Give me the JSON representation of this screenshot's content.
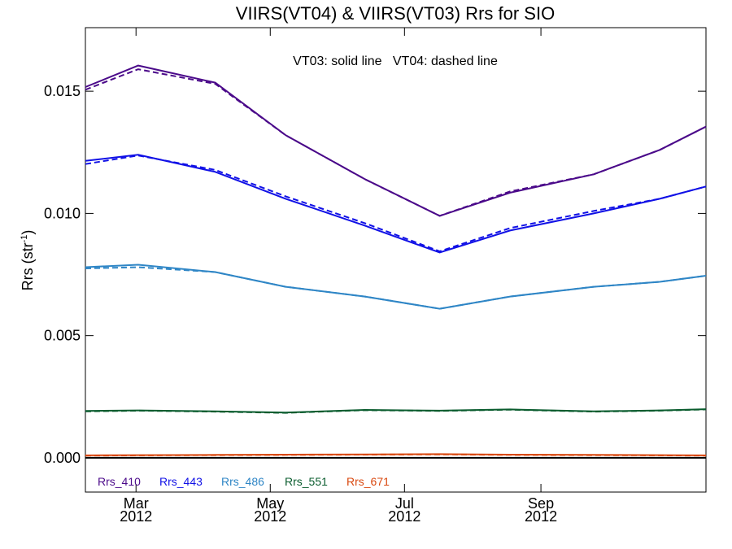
{
  "chart_data": {
    "type": "line",
    "title": "VIIRS(VT04) & VIIRS(VT03)  Rrs for SIO",
    "annotation": "VT03: solid line   VT04: dashed line",
    "ylabel_main": "Rrs (str",
    "ylabel_sup": "-1",
    "ylabel_close": ")",
    "xlim": [
      "2012-02-07",
      "2012-11-15"
    ],
    "ylim": [
      -0.0014,
      0.0176
    ],
    "yticks": [
      0.0,
      0.005,
      0.01,
      0.015
    ],
    "ytick_labels": [
      "0.000",
      "0.005",
      "0.010",
      "0.015"
    ],
    "xticks": [
      {
        "date": "2012-03-01",
        "month": "Mar",
        "year": "2012"
      },
      {
        "date": "2012-05-01",
        "month": "May",
        "year": "2012"
      },
      {
        "date": "2012-07-01",
        "month": "Jul",
        "year": "2012"
      },
      {
        "date": "2012-09-01",
        "month": "Sep",
        "year": "2012"
      }
    ],
    "zero_line": true,
    "legend_position": "bottom-left",
    "x": [
      "2012-02-07",
      "2012-03-02",
      "2012-04-06",
      "2012-05-08",
      "2012-06-13",
      "2012-07-17",
      "2012-08-18",
      "2012-09-25",
      "2012-10-25",
      "2012-11-15"
    ],
    "series": [
      {
        "name": "Rrs_410",
        "color": "#4b0a8a",
        "vt03": [
          0.01517,
          0.01605,
          0.01535,
          0.0132,
          0.0114,
          0.0099,
          0.01085,
          0.0116,
          0.0126,
          0.01355
        ],
        "vt04": [
          0.01506,
          0.0159,
          0.0153,
          0.0132,
          0.0114,
          0.0099,
          0.0109,
          0.0116,
          0.0126,
          0.01355
        ]
      },
      {
        "name": "Rrs_443",
        "color": "#1010e6",
        "vt03": [
          0.01215,
          0.0124,
          0.0117,
          0.0106,
          0.0095,
          0.0084,
          0.0093,
          0.01,
          0.0106,
          0.0111
        ],
        "vt04": [
          0.01202,
          0.01237,
          0.01178,
          0.0107,
          0.0096,
          0.00845,
          0.0094,
          0.0101,
          0.0106,
          0.0111
        ]
      },
      {
        "name": "Rrs_486",
        "color": "#2f86c6",
        "vt03": [
          0.0078,
          0.0079,
          0.0076,
          0.007,
          0.0066,
          0.0061,
          0.0066,
          0.007,
          0.0072,
          0.00745
        ],
        "vt04": [
          0.00775,
          0.0078,
          0.0076,
          0.007,
          0.0066,
          0.0061,
          0.0066,
          0.007,
          0.0072,
          0.00745
        ]
      },
      {
        "name": "Rrs_551",
        "color": "#0a5c2e",
        "vt03": [
          0.00192,
          0.00194,
          0.0019,
          0.00185,
          0.00196,
          0.00193,
          0.00198,
          0.0019,
          0.00194,
          0.00199
        ],
        "vt04": [
          0.0019,
          0.00193,
          0.00189,
          0.00184,
          0.00195,
          0.00192,
          0.00197,
          0.00189,
          0.00193,
          0.00198
        ]
      },
      {
        "name": "Rrs_671",
        "color": "#d9480f",
        "vt03": [
          0.0001,
          0.00011,
          0.00012,
          0.00013,
          0.00014,
          0.00015,
          0.00013,
          0.00012,
          0.00011,
          0.0001
        ],
        "vt04": [
          9e-05,
          0.0001,
          0.00011,
          0.00012,
          0.00013,
          0.00014,
          0.00012,
          0.00011,
          0.0001,
          9e-05
        ]
      }
    ]
  }
}
